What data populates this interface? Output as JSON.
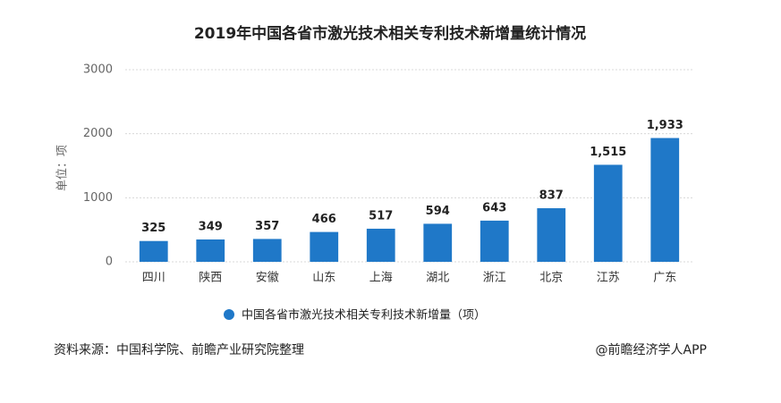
{
  "chart_data": {
    "type": "bar",
    "title": "2019年中国各省市激光技术相关专利技术新增量统计情况",
    "y_label": "单位：项",
    "categories": [
      "四川",
      "陕西",
      "安徽",
      "山东",
      "上海",
      "湖北",
      "浙江",
      "北京",
      "江苏",
      "广东"
    ],
    "series": [
      {
        "name": "中国各省市激光技术相关专利技术新增量（项）",
        "color": "#1f78c8",
        "values": [
          325,
          349,
          357,
          466,
          517,
          594,
          643,
          837,
          1515,
          1933
        ],
        "value_labels": [
          "325",
          "349",
          "357",
          "466",
          "517",
          "594",
          "643",
          "837",
          "1,515",
          "1,933"
        ]
      }
    ],
    "ylim": [
      0,
      3000
    ],
    "yticks": [
      0,
      1000,
      2000,
      3000
    ],
    "grid": true,
    "legend": "bottom"
  },
  "footer": {
    "source": "资料来源：中国科学院、前瞻产业研究院整理",
    "credit": "@前瞻经济学人APP"
  }
}
